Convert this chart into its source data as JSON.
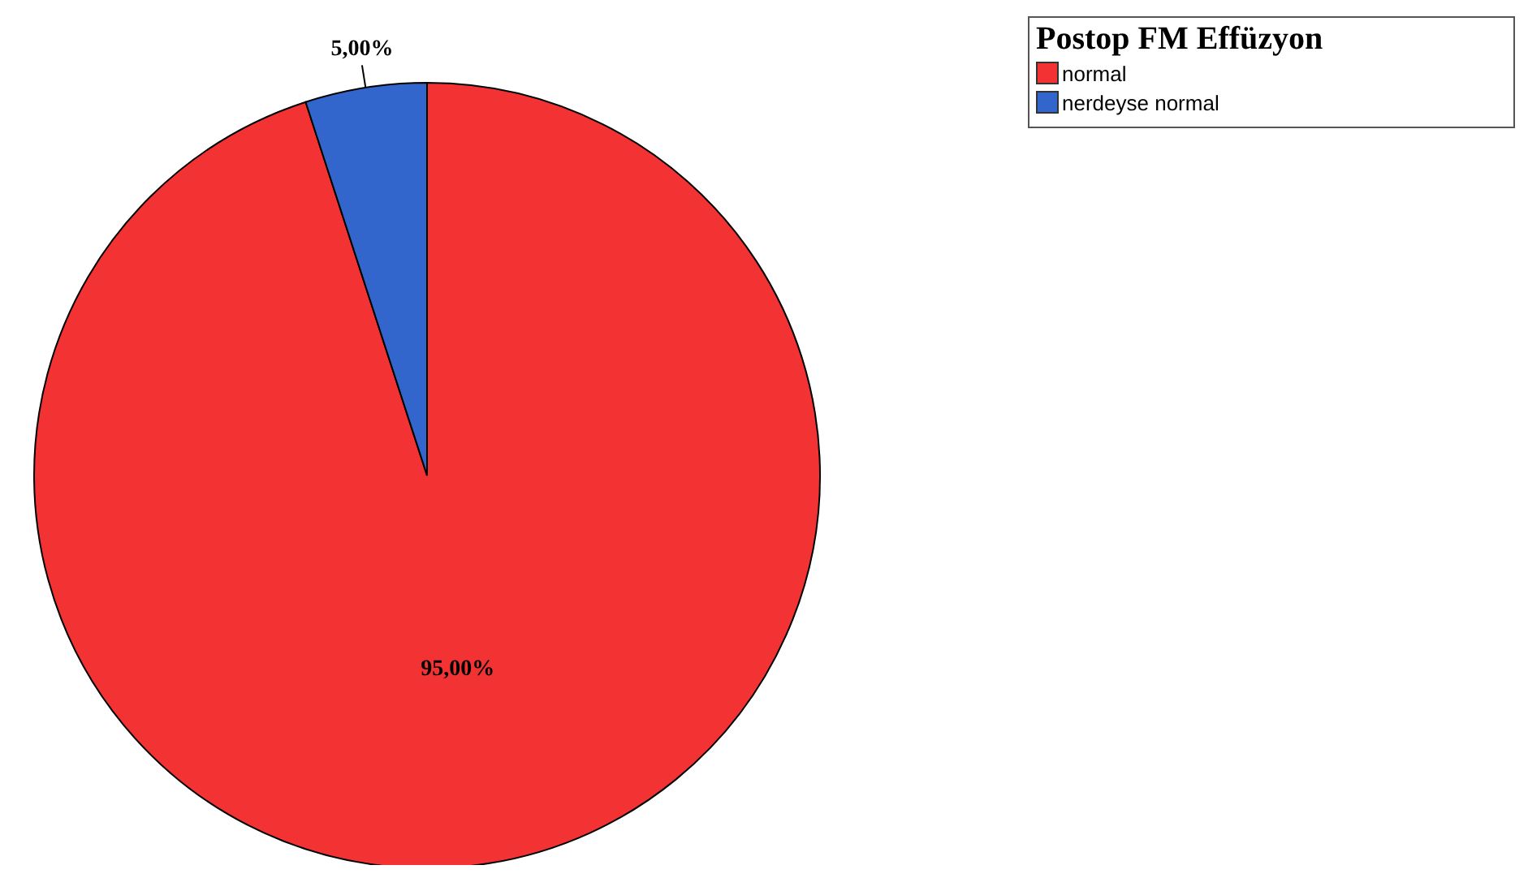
{
  "chart_data": {
    "type": "pie",
    "legend_title": "Postop FM Effüzyon",
    "categories": [
      "normal",
      "nerdeyse normal"
    ],
    "values": [
      95,
      5
    ],
    "colors": [
      "#f33333",
      "#3366cc"
    ],
    "value_labels": [
      "95,00%",
      "5,00%"
    ],
    "legend": "top right"
  }
}
